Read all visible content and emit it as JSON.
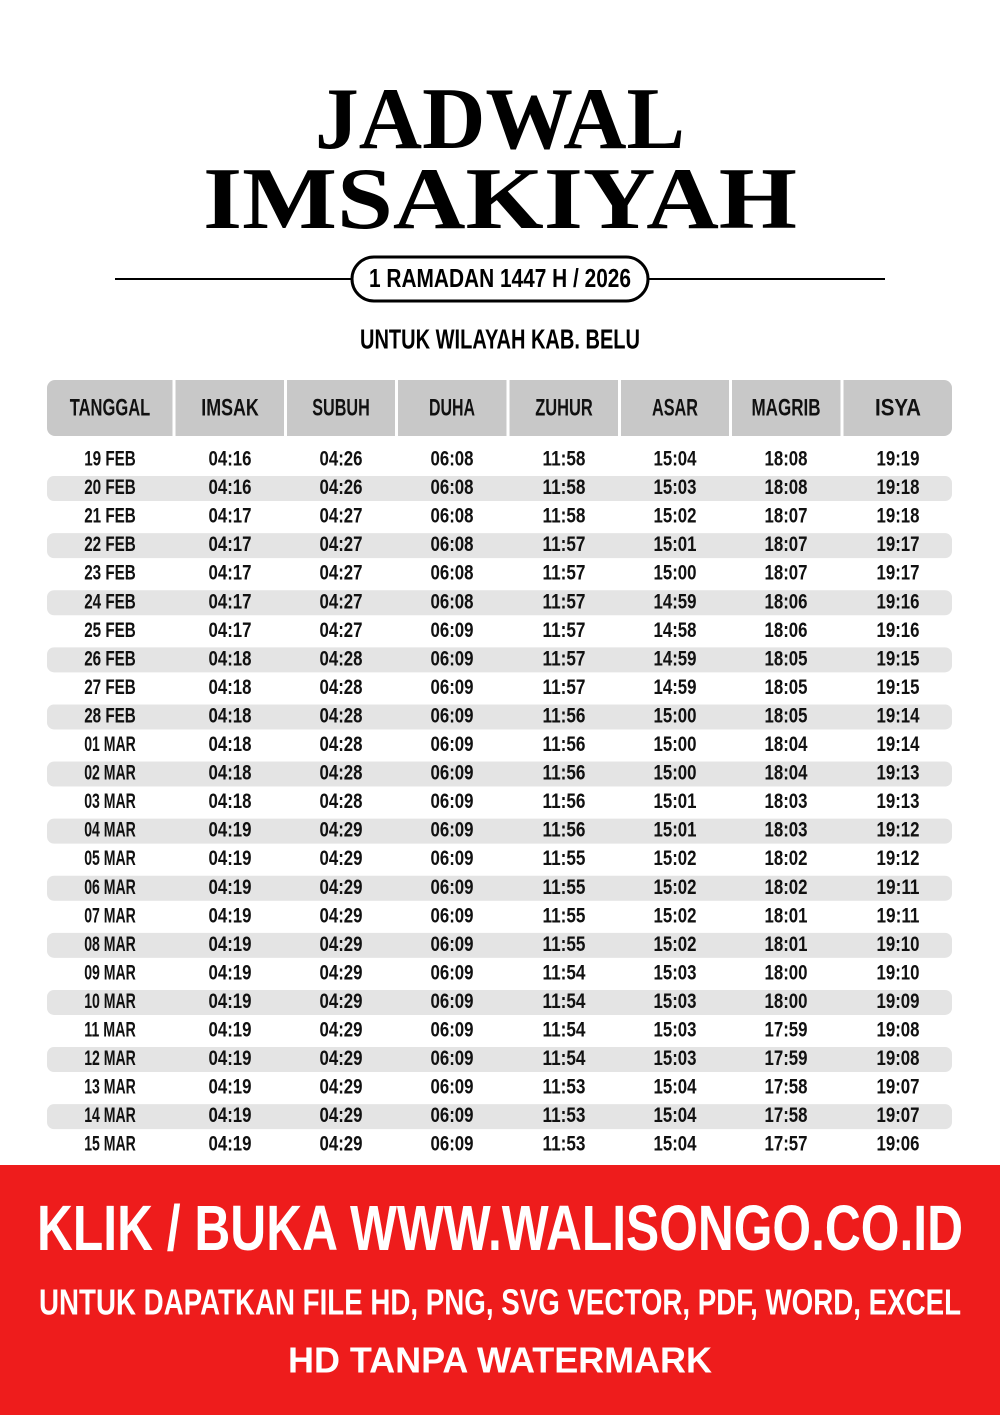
{
  "header": {
    "title_line1": "JADWAL",
    "title_line2": "IMSAKIYAH",
    "period": "1 RAMADAN 1447 H / 2026",
    "region": "UNTUK WILAYAH KAB. BELU"
  },
  "table": {
    "columns": [
      "TANGGAL",
      "IMSAK",
      "SUBUH",
      "DUHA",
      "ZUHUR",
      "ASAR",
      "MAGRIB",
      "ISYA"
    ],
    "rows": [
      [
        "19 FEB",
        "04:16",
        "04:26",
        "06:08",
        "11:58",
        "15:04",
        "18:08",
        "19:19"
      ],
      [
        "20 FEB",
        "04:16",
        "04:26",
        "06:08",
        "11:58",
        "15:03",
        "18:08",
        "19:18"
      ],
      [
        "21 FEB",
        "04:17",
        "04:27",
        "06:08",
        "11:58",
        "15:02",
        "18:07",
        "19:18"
      ],
      [
        "22 FEB",
        "04:17",
        "04:27",
        "06:08",
        "11:57",
        "15:01",
        "18:07",
        "19:17"
      ],
      [
        "23 FEB",
        "04:17",
        "04:27",
        "06:08",
        "11:57",
        "15:00",
        "18:07",
        "19:17"
      ],
      [
        "24 FEB",
        "04:17",
        "04:27",
        "06:08",
        "11:57",
        "14:59",
        "18:06",
        "19:16"
      ],
      [
        "25 FEB",
        "04:17",
        "04:27",
        "06:09",
        "11:57",
        "14:58",
        "18:06",
        "19:16"
      ],
      [
        "26 FEB",
        "04:18",
        "04:28",
        "06:09",
        "11:57",
        "14:59",
        "18:05",
        "19:15"
      ],
      [
        "27 FEB",
        "04:18",
        "04:28",
        "06:09",
        "11:57",
        "14:59",
        "18:05",
        "19:15"
      ],
      [
        "28 FEB",
        "04:18",
        "04:28",
        "06:09",
        "11:56",
        "15:00",
        "18:05",
        "19:14"
      ],
      [
        "01 MAR",
        "04:18",
        "04:28",
        "06:09",
        "11:56",
        "15:00",
        "18:04",
        "19:14"
      ],
      [
        "02 MAR",
        "04:18",
        "04:28",
        "06:09",
        "11:56",
        "15:00",
        "18:04",
        "19:13"
      ],
      [
        "03 MAR",
        "04:18",
        "04:28",
        "06:09",
        "11:56",
        "15:01",
        "18:03",
        "19:13"
      ],
      [
        "04 MAR",
        "04:19",
        "04:29",
        "06:09",
        "11:56",
        "15:01",
        "18:03",
        "19:12"
      ],
      [
        "05 MAR",
        "04:19",
        "04:29",
        "06:09",
        "11:55",
        "15:02",
        "18:02",
        "19:12"
      ],
      [
        "06 MAR",
        "04:19",
        "04:29",
        "06:09",
        "11:55",
        "15:02",
        "18:02",
        "19:11"
      ],
      [
        "07 MAR",
        "04:19",
        "04:29",
        "06:09",
        "11:55",
        "15:02",
        "18:01",
        "19:11"
      ],
      [
        "08 MAR",
        "04:19",
        "04:29",
        "06:09",
        "11:55",
        "15:02",
        "18:01",
        "19:10"
      ],
      [
        "09 MAR",
        "04:19",
        "04:29",
        "06:09",
        "11:54",
        "15:03",
        "18:00",
        "19:10"
      ],
      [
        "10 MAR",
        "04:19",
        "04:29",
        "06:09",
        "11:54",
        "15:03",
        "18:00",
        "19:09"
      ],
      [
        "11 MAR",
        "04:19",
        "04:29",
        "06:09",
        "11:54",
        "15:03",
        "17:59",
        "19:08"
      ],
      [
        "12 MAR",
        "04:19",
        "04:29",
        "06:09",
        "11:54",
        "15:03",
        "17:59",
        "19:08"
      ],
      [
        "13 MAR",
        "04:19",
        "04:29",
        "06:09",
        "11:53",
        "15:04",
        "17:58",
        "19:07"
      ],
      [
        "14 MAR",
        "04:19",
        "04:29",
        "06:09",
        "11:53",
        "15:04",
        "17:58",
        "19:07"
      ],
      [
        "15 MAR",
        "04:19",
        "04:29",
        "06:09",
        "11:53",
        "15:04",
        "17:57",
        "19:06"
      ]
    ]
  },
  "banner": {
    "line1": "KLIK / BUKA WWW.WALISONGO.CO.ID",
    "line2": "UNTUK DAPATKAN FILE HD, PNG, SVG VECTOR, PDF, WORD, EXCEL",
    "line3": "HD TANPA WATERMARK"
  }
}
